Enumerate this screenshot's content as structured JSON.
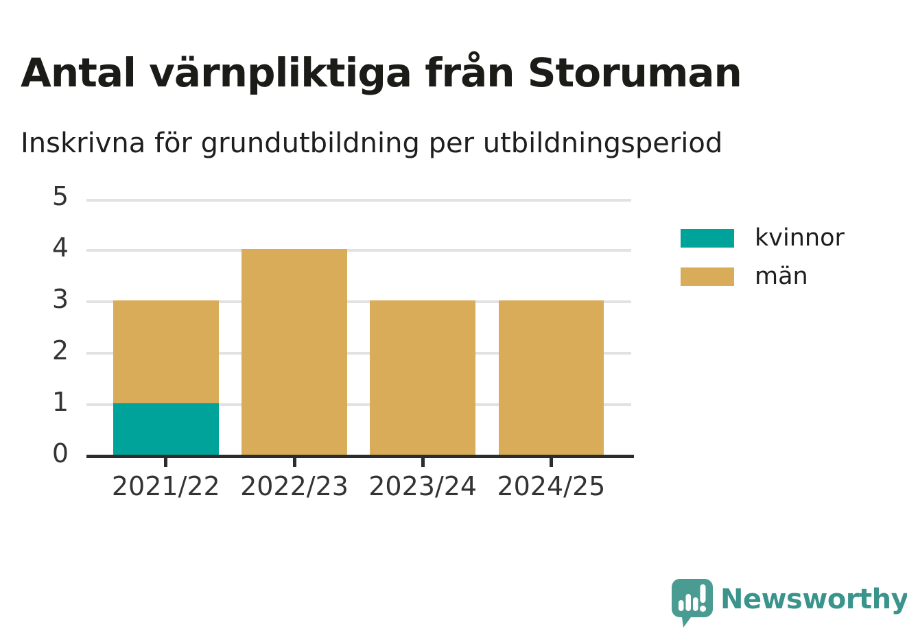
{
  "header": {
    "title": "Antal värnpliktiga från Storuman",
    "subtitle": "Inskrivna för grundutbildning per utbildningsperiod"
  },
  "chart_data": {
    "type": "bar",
    "stacked": true,
    "title": "Antal värnpliktiga från Storuman",
    "subtitle": "Inskrivna för grundutbildning per utbildningsperiod",
    "categories": [
      "2021/22",
      "2022/23",
      "2023/24",
      "2024/25"
    ],
    "series": [
      {
        "name": "kvinnor",
        "color": "#00a39a",
        "values": [
          1,
          0,
          0,
          0
        ]
      },
      {
        "name": "män",
        "color": "#d9ac59",
        "values": [
          2,
          4,
          3,
          3
        ]
      }
    ],
    "totals": [
      3,
      4,
      3,
      3
    ],
    "xlabel": "",
    "ylabel": "",
    "ylim": [
      0,
      5
    ],
    "yticks": [
      0,
      1,
      2,
      3,
      4,
      5
    ],
    "grid": true,
    "legend_position": "right"
  },
  "colors": {
    "kvinnor": "#00a39a",
    "man": "#d9ac59",
    "axis": "#2c2c2c",
    "gridline": "#e2e2e2",
    "tick_label": "#333333",
    "brand": "#3a948c"
  },
  "branding": {
    "logo_text": "Newsworthy",
    "logo_icon": "newsworthy-speech-bubble-chart-icon"
  }
}
